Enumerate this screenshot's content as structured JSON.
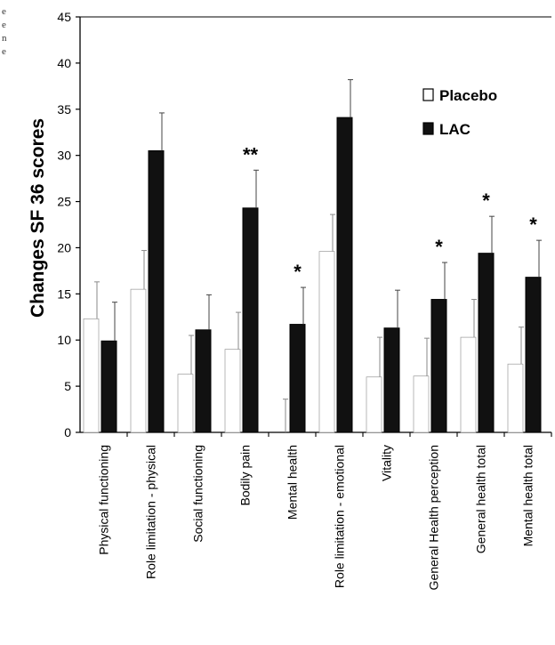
{
  "margin_fragment": [
    "e",
    "e",
    "n",
    "e"
  ],
  "legend": [
    {
      "label": "Placebo",
      "style": "open"
    },
    {
      "label": "LAC",
      "style": "filled"
    }
  ],
  "colors": {
    "placebo_fill": "#ffffff",
    "lac_fill": "#111111",
    "axis": "#000000"
  },
  "chart_data": {
    "type": "bar",
    "ylabel": "Changes SF 36 scores",
    "xlabel": "",
    "ylim": [
      0,
      45
    ],
    "yticks": [
      0,
      5,
      10,
      15,
      20,
      25,
      30,
      35,
      40,
      45
    ],
    "grid": false,
    "legend_position": "top-right",
    "categories": [
      "Physical functioning",
      "Role limitation - physical",
      "Social functioning",
      "Bodily pain",
      "Mental health",
      "Role limitation - emotional",
      "Vitality",
      "General Health perception",
      "General health total",
      "Mental health total"
    ],
    "series": [
      {
        "name": "Placebo",
        "values": [
          12.3,
          15.5,
          6.3,
          9.0,
          0,
          19.6,
          6.0,
          6.1,
          10.3,
          7.4
        ],
        "errors": [
          4.0,
          4.2,
          4.2,
          4.0,
          3.6,
          4.0,
          4.3,
          4.1,
          4.1,
          4.0
        ]
      },
      {
        "name": "LAC",
        "values": [
          9.9,
          30.5,
          11.1,
          24.3,
          11.7,
          34.1,
          11.3,
          14.4,
          19.4,
          16.8
        ],
        "errors": [
          4.2,
          4.1,
          3.8,
          4.1,
          4.0,
          4.1,
          4.1,
          4.0,
          4.0,
          4.0
        ]
      }
    ],
    "annotations": [
      "",
      "",
      "",
      "**",
      "*",
      "",
      "",
      "*",
      "*",
      "*"
    ]
  }
}
